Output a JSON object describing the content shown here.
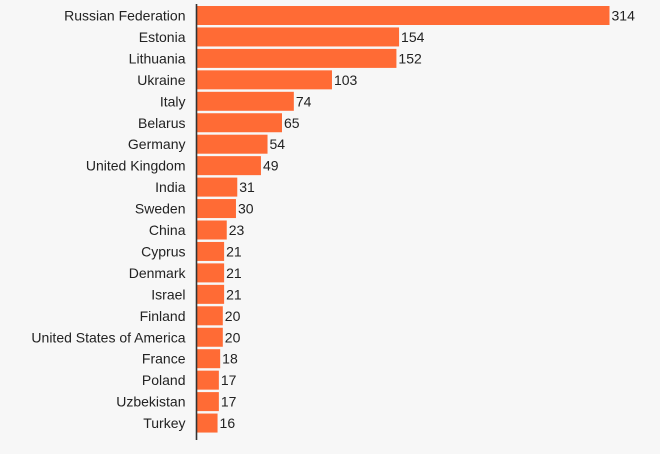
{
  "chart_data": {
    "type": "bar",
    "orientation": "horizontal",
    "categories": [
      "Russian Federation",
      "Estonia",
      "Lithuania",
      "Ukraine",
      "Italy",
      "Belarus",
      "Germany",
      "United Kingdom",
      "India",
      "Sweden",
      "China",
      "Cyprus",
      "Denmark",
      "Israel",
      "Finland",
      "United States of America",
      "France",
      "Poland",
      "Uzbekistan",
      "Turkey"
    ],
    "values": [
      314,
      154,
      152,
      103,
      74,
      65,
      54,
      49,
      31,
      30,
      23,
      21,
      21,
      21,
      20,
      20,
      18,
      17,
      17,
      16
    ],
    "title": "",
    "xlabel": "",
    "ylabel": "",
    "xlim": [
      0,
      314
    ],
    "grid": false,
    "legend": "none",
    "data_labels": true,
    "colors": {
      "bar": "#ff6b35",
      "axis": "#333333",
      "text": "#222222",
      "background": "#f7f7f7"
    }
  }
}
